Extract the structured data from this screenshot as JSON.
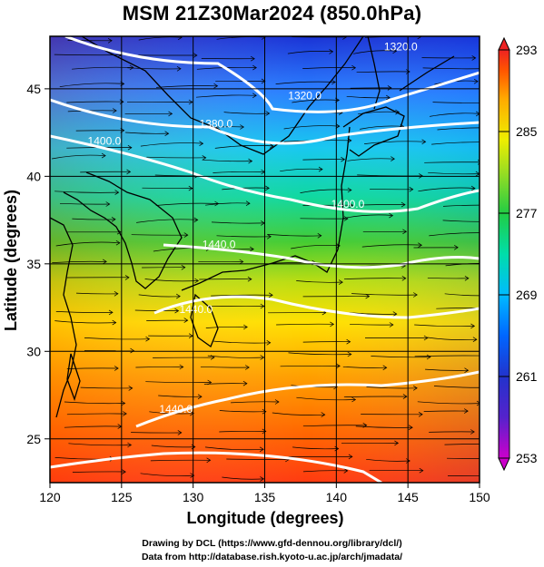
{
  "title": "MSM 21Z30Mar2024 (850.0hPa)",
  "x_axis": {
    "label": "Longitude (degrees)",
    "range": [
      120,
      150
    ],
    "ticks": [
      120,
      125,
      130,
      135,
      140,
      145,
      150
    ]
  },
  "y_axis": {
    "label": "Latitude  (degrees)",
    "range": [
      22.5,
      48
    ],
    "ticks": [
      25,
      30,
      35,
      40,
      45
    ]
  },
  "colorbar": {
    "range": [
      253,
      293
    ],
    "labels": [
      "293",
      "285",
      "277",
      "269",
      "261",
      "253"
    ],
    "label_values": [
      293,
      285,
      277,
      269,
      261,
      253
    ],
    "colors": [
      "#cc00cc",
      "#3333cc",
      "#0066ff",
      "#00bbff",
      "#00ddaa",
      "#22cc44",
      "#99dd22",
      "#eeee00",
      "#ffaa00",
      "#ff5500",
      "#ee2222"
    ]
  },
  "contour_labels": [
    {
      "text": "1320.0",
      "lon": 137.8,
      "lat": 44.4
    },
    {
      "text": "1380.0",
      "lon": 131.6,
      "lat": 42.8
    },
    {
      "text": "1400.0",
      "lon": 123.8,
      "lat": 41.8
    },
    {
      "text": "1400.0",
      "lon": 140.8,
      "lat": 38.2
    },
    {
      "text": "1440.0",
      "lon": 131.8,
      "lat": 35.9
    },
    {
      "text": "1440.0",
      "lon": 130.2,
      "lat": 32.2
    },
    {
      "text": "1440.0",
      "lon": 128.8,
      "lat": 26.5
    },
    {
      "text": "1320.0",
      "lon": 144.5,
      "lat": 47.2
    }
  ],
  "credits": [
    "Drawing by DCL (https://www.gfd-dennou.org/library/dcl/)",
    "Data from http://database.rish.kyoto-u.ac.jp/arch/jmadata/"
  ]
}
